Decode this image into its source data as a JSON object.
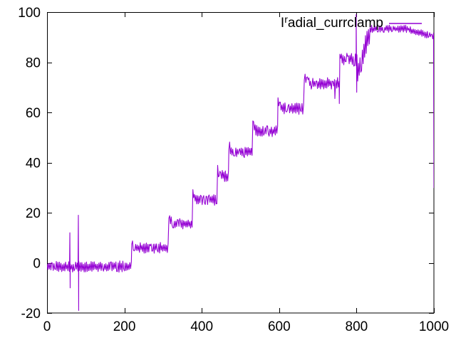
{
  "chart_data": {
    "type": "line",
    "title": "",
    "xlabel": "",
    "ylabel": "",
    "xlim": [
      0,
      1000
    ],
    "ylim": [
      -20,
      100
    ],
    "xticks": [
      0,
      200,
      400,
      600,
      800,
      1000
    ],
    "yticks": [
      -20,
      0,
      20,
      40,
      60,
      80,
      100
    ],
    "grid": false,
    "legend_position": "top-right-inside",
    "legend": {
      "base": "I",
      "sup": "r",
      "rest": "adial_currclamp",
      "full_label": "Iradial_currclamp"
    },
    "line_color": "#9400d3",
    "axis_color": "#000000",
    "background_color": "#ffffff",
    "series_model": {
      "description": "Noisy staircase signal: plateaus with ~±2 noise, step rises, two bipolar spikes near x=60 and x=81, dips near x=744/755, up-down spike near x=800, noisy ramp to ~93, slow decline, vertical drop at x=1000.",
      "sample_dx": 2,
      "segments": [
        {
          "from": 0,
          "to": 219,
          "level": -1.5,
          "noise": 2.3
        },
        {
          "from": 219,
          "to": 315,
          "level": 6,
          "noise": 2.2,
          "overshoot": 3
        },
        {
          "from": 315,
          "to": 377,
          "level": 15.7,
          "noise": 2.2,
          "overshoot": 3
        },
        {
          "from": 377,
          "to": 441,
          "level": 25,
          "noise": 2.2,
          "overshoot": 3
        },
        {
          "from": 441,
          "to": 470,
          "level": 34.5,
          "noise": 2.2,
          "overshoot": 2.5
        },
        {
          "from": 470,
          "to": 532,
          "level": 44,
          "noise": 2.2,
          "overshoot": 3
        },
        {
          "from": 532,
          "to": 597,
          "level": 52.5,
          "noise": 2.2,
          "overshoot": 3
        },
        {
          "from": 597,
          "to": 665,
          "level": 61.5,
          "noise": 2.3,
          "overshoot": 3
        },
        {
          "from": 665,
          "to": 757,
          "level": 71.5,
          "noise": 2.4,
          "overshoot": 3
        },
        {
          "from": 757,
          "to": 803,
          "level": 81,
          "noise": 2.6,
          "overshoot": 3
        },
        {
          "from": 803,
          "to": 835,
          "level": 76,
          "level_end": 92,
          "noise": 5
        },
        {
          "from": 835,
          "to": 935,
          "level": 93.3,
          "noise": 1.5
        },
        {
          "from": 935,
          "to": 1000,
          "level": 93,
          "level_end": 90.2,
          "noise": 1.4
        }
      ],
      "spikes": [
        {
          "x": 59,
          "y": 12
        },
        {
          "x": 59.8,
          "y": -10
        },
        {
          "x": 81,
          "y": 19
        },
        {
          "x": 81.8,
          "y": -19
        },
        {
          "x": 744,
          "y": 65.5
        },
        {
          "x": 755.5,
          "y": 63.5
        },
        {
          "x": 799,
          "y": 99
        },
        {
          "x": 800.5,
          "y": 68
        },
        {
          "x": 1000,
          "y": 30
        }
      ]
    }
  }
}
